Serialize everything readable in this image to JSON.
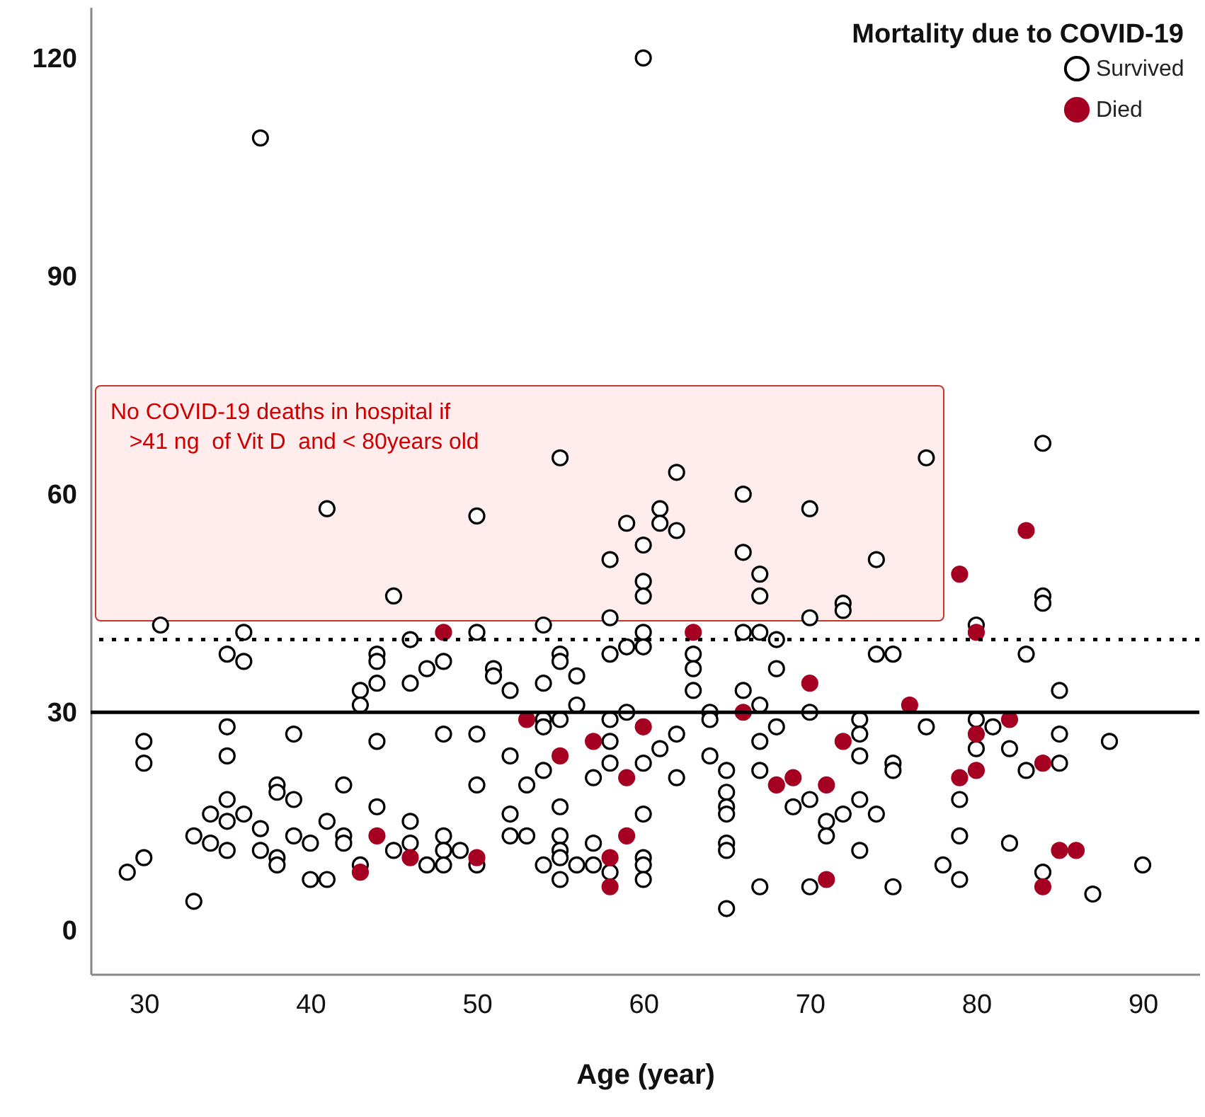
{
  "chart_data": {
    "type": "scatter",
    "xlabel": "Age (year)",
    "legend_title": "Mortality due to COVID-19",
    "legend": "top right",
    "grid": false,
    "marker": "circle",
    "xlim": [
      26.8,
      93.4
    ],
    "xticks": [
      30,
      40,
      50,
      60,
      70,
      80,
      90
    ],
    "ylim": [
      -6,
      127
    ],
    "yticks": [
      0,
      30,
      60,
      90,
      120
    ],
    "ref_lines": [
      {
        "axis": "y",
        "value": 30,
        "color": "#000000",
        "line_style": "solid"
      },
      {
        "axis": "y",
        "value": 40,
        "color": "#000000",
        "line_style": "dotted"
      }
    ],
    "annotations": [
      "No COVID-19 deaths in hospital if\n   >41 ng  of Vit D  and < 80years old"
    ],
    "series": [
      {
        "name": "Survived",
        "color": "#000000",
        "x": [
          60,
          37,
          55,
          77,
          84,
          62,
          41,
          50,
          61,
          59,
          61,
          62,
          66,
          70,
          60,
          58,
          66,
          67,
          74,
          60,
          60,
          67,
          45,
          72,
          84,
          80,
          58,
          54,
          70,
          72,
          31,
          36,
          35,
          36,
          43,
          43,
          30,
          30,
          35,
          35,
          39,
          42,
          38,
          38,
          39,
          35,
          34,
          36,
          35,
          41,
          33,
          34,
          35,
          37,
          37,
          39,
          40,
          42,
          42,
          38,
          38,
          30,
          29,
          33,
          40,
          41,
          43,
          46,
          50,
          44,
          44,
          47,
          48,
          44,
          46,
          51,
          51,
          52,
          54,
          55,
          55,
          56,
          58,
          59,
          54,
          54,
          55,
          56,
          58,
          59,
          58,
          58,
          44,
          48,
          50,
          52,
          54,
          53,
          57,
          50,
          44,
          46,
          52,
          55,
          52,
          53,
          55,
          57,
          46,
          48,
          48,
          49,
          45,
          47,
          48,
          50,
          55,
          55,
          54,
          55,
          56,
          57,
          58,
          60,
          60,
          66,
          67,
          68,
          68,
          63,
          63,
          63,
          66,
          74,
          75,
          67,
          70,
          64,
          64,
          68,
          73,
          73,
          73,
          62,
          61,
          60,
          67,
          64,
          65,
          62,
          67,
          75,
          75,
          65,
          65,
          65,
          69,
          70,
          72,
          73,
          74,
          71,
          71,
          73,
          60,
          60,
          60,
          60,
          65,
          65,
          67,
          70,
          75,
          65,
          84,
          83,
          85,
          80,
          81,
          77,
          80,
          82,
          85,
          88,
          83,
          85,
          79,
          79,
          82,
          78,
          79,
          84,
          90,
          87
        ],
        "values": [
          120,
          109,
          65,
          65,
          67,
          63,
          58,
          57,
          58,
          56,
          56,
          55,
          60,
          58,
          53,
          51,
          52,
          49,
          51,
          48,
          46,
          46,
          46,
          45,
          46,
          42,
          43,
          42,
          43,
          44,
          42,
          41,
          38,
          37,
          33,
          31,
          26,
          23,
          28,
          24,
          27,
          20,
          20,
          19,
          18,
          18,
          16,
          16,
          15,
          15,
          13,
          12,
          11,
          14,
          11,
          13,
          12,
          13,
          12,
          10,
          9,
          10,
          8,
          4,
          7,
          7,
          9,
          40,
          41,
          38,
          37,
          36,
          37,
          34,
          34,
          36,
          35,
          33,
          34,
          38,
          37,
          35,
          38,
          39,
          29,
          28,
          29,
          31,
          29,
          30,
          26,
          23,
          26,
          27,
          27,
          24,
          22,
          20,
          21,
          20,
          17,
          15,
          16,
          17,
          13,
          13,
          13,
          12,
          12,
          13,
          11,
          11,
          11,
          9,
          9,
          9,
          11,
          10,
          9,
          7,
          9,
          9,
          8,
          41,
          39,
          41,
          41,
          40,
          36,
          38,
          36,
          33,
          33,
          38,
          38,
          31,
          30,
          30,
          29,
          28,
          29,
          27,
          24,
          27,
          25,
          23,
          26,
          24,
          22,
          21,
          22,
          23,
          22,
          19,
          17,
          16,
          17,
          18,
          16,
          18,
          16,
          15,
          13,
          11,
          16,
          10,
          9,
          7,
          12,
          11,
          6,
          6,
          6,
          3,
          45,
          38,
          33,
          29,
          28,
          28,
          25,
          25,
          27,
          26,
          22,
          23,
          18,
          13,
          12,
          9,
          7,
          8,
          9,
          5
        ]
      },
      {
        "name": "Died",
        "color": "#a50021",
        "x": [
          43,
          44,
          46,
          48,
          50,
          53,
          55,
          57,
          59,
          59,
          58,
          58,
          63,
          60,
          66,
          70,
          72,
          68,
          69,
          71,
          71,
          76,
          80,
          80,
          80,
          79,
          82,
          84,
          85,
          86,
          84,
          83,
          79
        ],
        "values": [
          8,
          13,
          10,
          41,
          10,
          29,
          24,
          26,
          21,
          13,
          10,
          6,
          41,
          28,
          30,
          34,
          26,
          20,
          21,
          20,
          7,
          31,
          41,
          27,
          22,
          21,
          29,
          23,
          11,
          11,
          6,
          55,
          49
        ]
      }
    ]
  }
}
